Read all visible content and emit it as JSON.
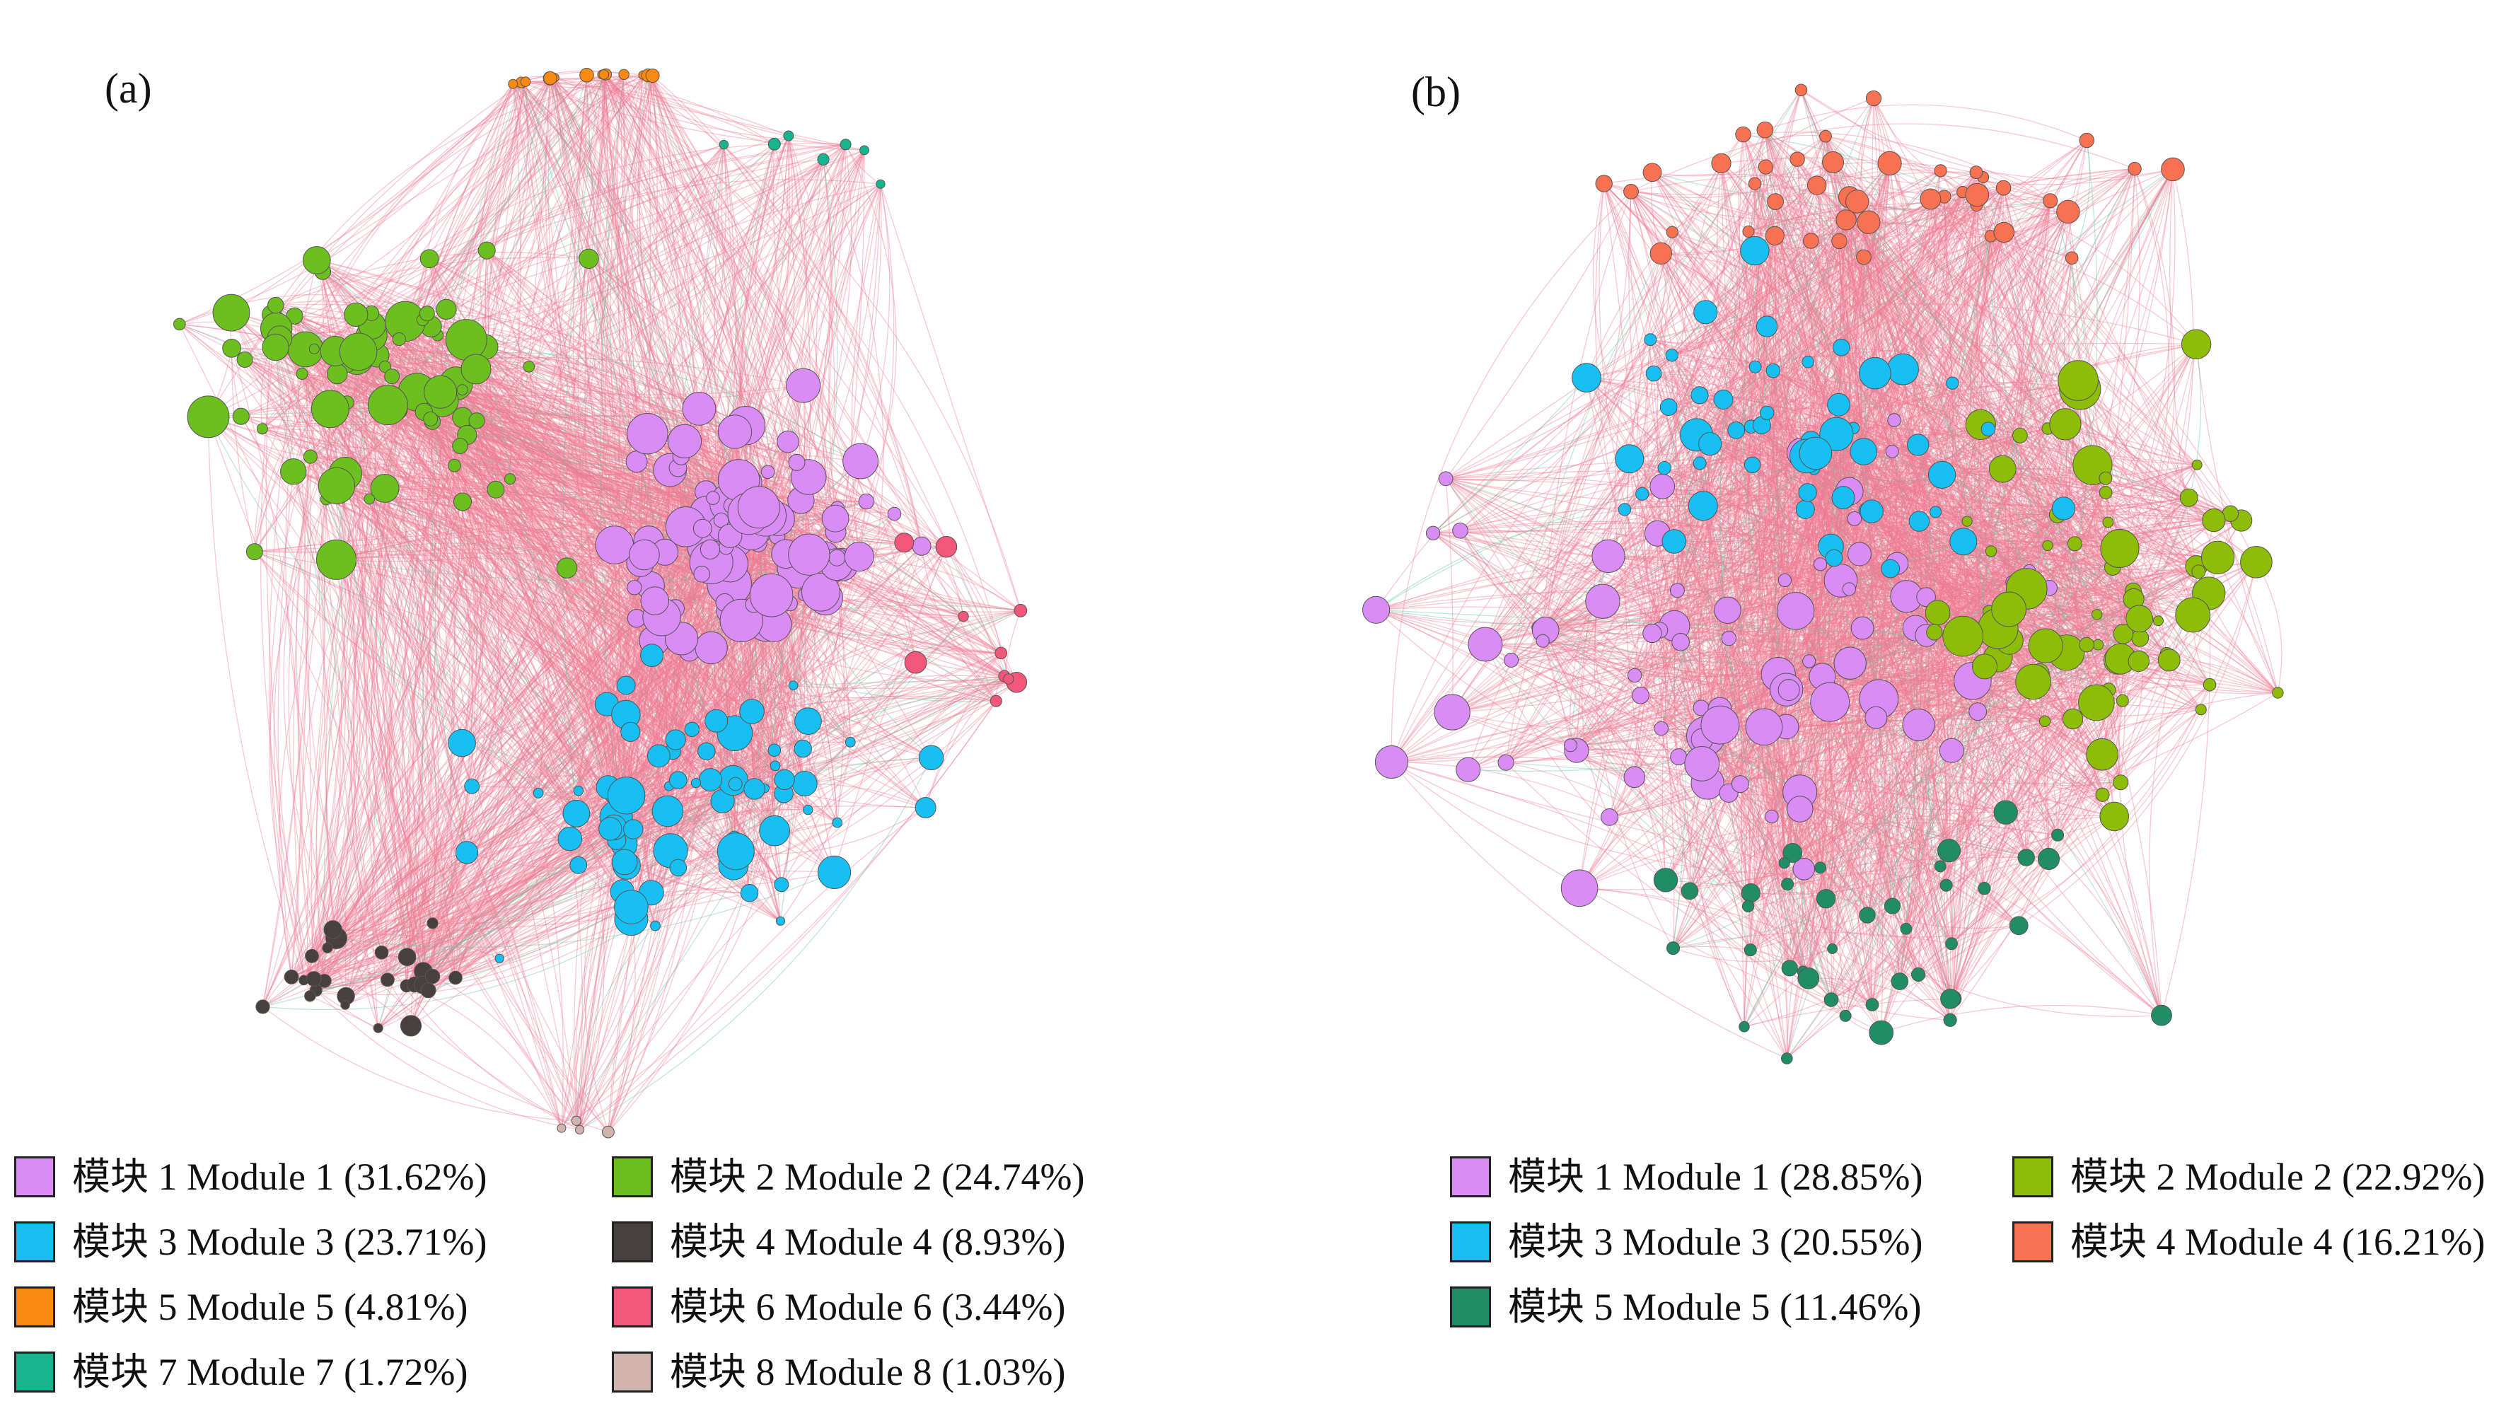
{
  "panels": [
    {
      "label": "(a)",
      "legend": [
        {
          "label": "模块 1 Module 1 (31.62%)",
          "color": "#DA8CF5",
          "percent": 31.62
        },
        {
          "label": "模块 2 Module 2 (24.74%)",
          "color": "#6DBE1F",
          "percent": 24.74
        },
        {
          "label": "模块 3 Module 3 (23.71%)",
          "color": "#18BFF2",
          "percent": 23.71
        },
        {
          "label": "模块 4 Module 4 (8.93%)",
          "color": "#48403E",
          "percent": 8.93
        },
        {
          "label": "模块 5 Module 5 (4.81%)",
          "color": "#F88A12",
          "percent": 4.81
        },
        {
          "label": "模块 6 Module 6 (3.44%)",
          "color": "#F2567A",
          "percent": 3.44
        },
        {
          "label": "模块 7 Module 7 (1.72%)",
          "color": "#17B58E",
          "percent": 1.72
        },
        {
          "label": "模块 8 Module 8 (1.03%)",
          "color": "#D1B4AE",
          "percent": 1.03
        }
      ]
    },
    {
      "label": "(b)",
      "legend": [
        {
          "label": "模块 1 Module 1 (28.85%)",
          "color": "#DA8CF5",
          "percent": 28.85
        },
        {
          "label": "模块 2 Module 2 (22.92%)",
          "color": "#8DBD06",
          "percent": 22.92
        },
        {
          "label": "模块 3 Module 3 (20.55%)",
          "color": "#18BFF2",
          "percent": 20.55
        },
        {
          "label": "模块 4 Module 4 (16.21%)",
          "color": "#F87251",
          "percent": 16.21
        },
        {
          "label": "模块 5 Module 5 (11.46%)",
          "color": "#218C66",
          "percent": 11.46
        }
      ]
    }
  ],
  "edge_colors": {
    "primary": "#EE7C93",
    "secondary": "#62C9A4"
  }
}
